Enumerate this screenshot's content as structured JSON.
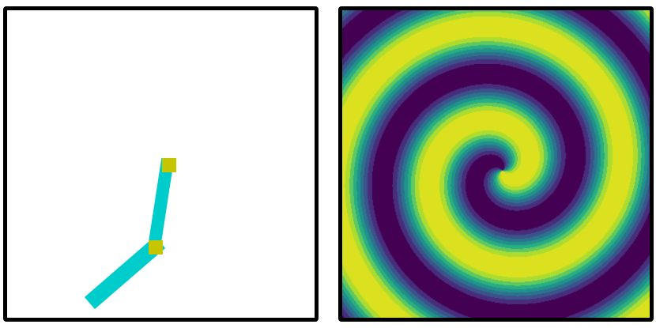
{
  "left_panel": {
    "background": "#ffffff",
    "arm_color": "#00cccc",
    "joint_color": "#c6c600"
  },
  "right_panel": {
    "palette": [
      "#440154",
      "#472d7b",
      "#3b528b",
      "#2c728e",
      "#21918c",
      "#28ae80",
      "#5ec962",
      "#addc30",
      "#dbe11e"
    ]
  },
  "border_color": "#000000"
}
